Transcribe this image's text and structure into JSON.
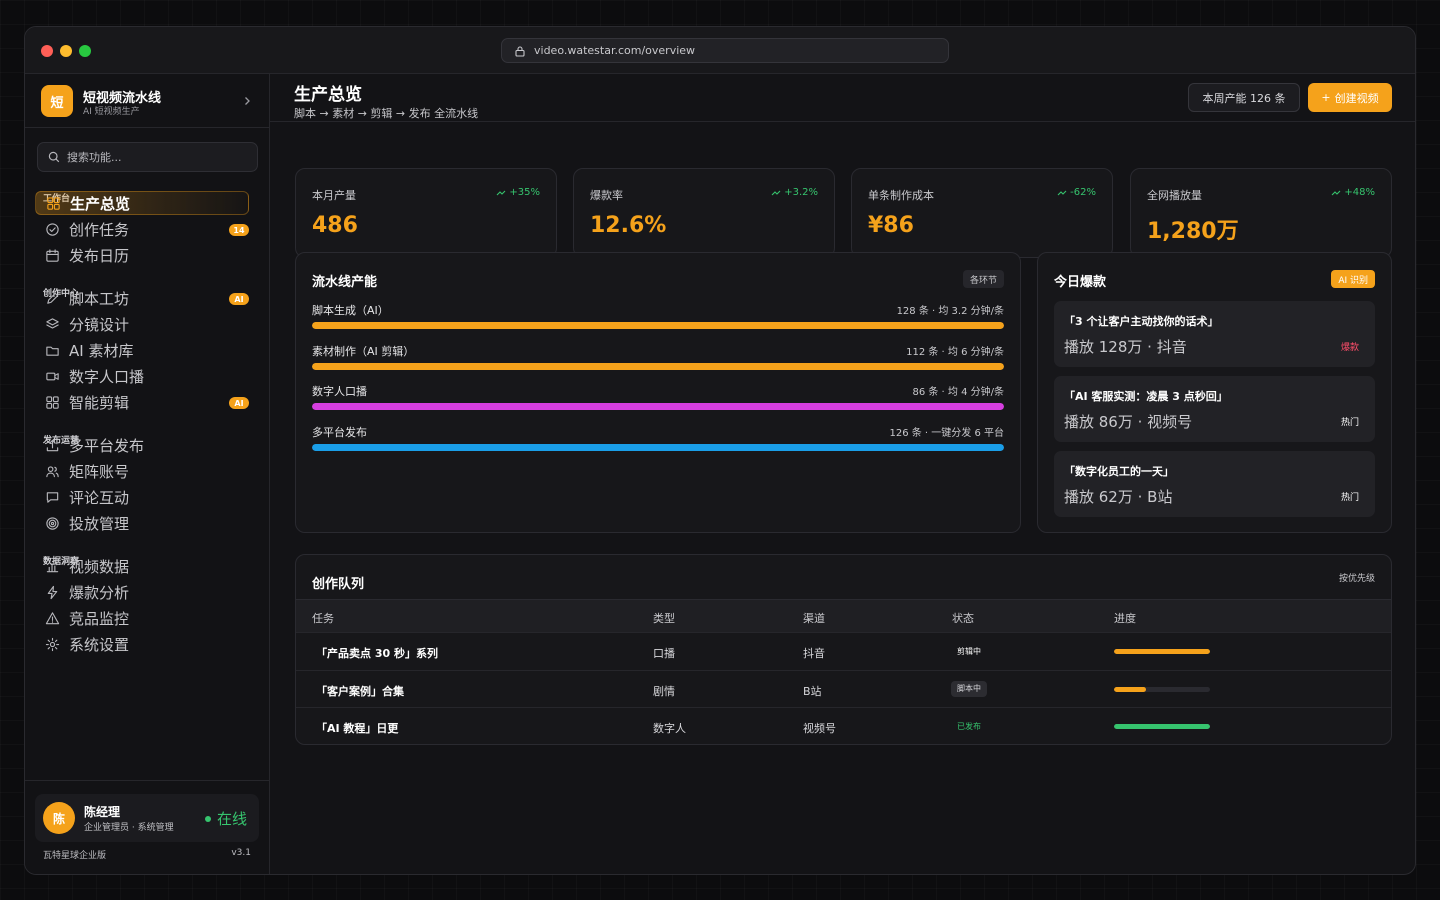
{
  "browser": {
    "url": "video.watestar.com/overview"
  },
  "brand": {
    "logo_char": "短",
    "name": "短视频流水线",
    "subtitle": "AI 短视频生产"
  },
  "search": {
    "placeholder": "搜索功能..."
  },
  "sidebar": {
    "sections": [
      {
        "label": "工作台",
        "items": [
          {
            "label": "生产总览",
            "icon": "grid-icon",
            "active": true
          },
          {
            "label": "创作任务",
            "icon": "check-circle-icon",
            "badge": "14"
          },
          {
            "label": "发布日历",
            "icon": "calendar-icon"
          }
        ]
      },
      {
        "label": "创作中心",
        "items": [
          {
            "label": "脚本工坊",
            "icon": "pencil-icon",
            "badge": "AI"
          },
          {
            "label": "分镜设计",
            "icon": "layers-icon"
          },
          {
            "label": "AI 素材库",
            "icon": "folder-icon"
          },
          {
            "label": "数字人口播",
            "icon": "video-icon"
          },
          {
            "label": "智能剪辑",
            "icon": "grid-icon",
            "badge": "AI"
          }
        ]
      },
      {
        "label": "发布运营",
        "items": [
          {
            "label": "多平台发布",
            "icon": "upload-icon"
          },
          {
            "label": "矩阵账号",
            "icon": "users-icon"
          },
          {
            "label": "评论互动",
            "icon": "message-icon"
          },
          {
            "label": "投放管理",
            "icon": "target-icon"
          }
        ]
      },
      {
        "label": "数据洞察",
        "items": [
          {
            "label": "视频数据",
            "icon": "bar-chart-icon"
          },
          {
            "label": "爆款分析",
            "icon": "lightning-icon"
          },
          {
            "label": "竞品监控",
            "icon": "alert-icon"
          },
          {
            "label": "系统设置",
            "icon": "gear-icon"
          }
        ]
      }
    ]
  },
  "user": {
    "avatar_char": "陈",
    "name": "陈经理",
    "role": "企业管理员 · 系统管理",
    "status": "在线"
  },
  "footer": {
    "org": "瓦特星球企业版",
    "version": "v3.1"
  },
  "header": {
    "title": "生产总览",
    "subtitle": "脚本 → 素材 → 剪辑 → 发布 全流水线",
    "week_output": "本周产能 126 条",
    "create_label": "创建视频"
  },
  "kpis": [
    {
      "label": "本月产量",
      "value": "486",
      "trend": "+35%"
    },
    {
      "label": "爆款率",
      "value": "12.6%",
      "trend": "+3.2%"
    },
    {
      "label": "单条制作成本",
      "value": "¥86",
      "trend": "-62%"
    },
    {
      "label": "全网播放量",
      "value": "1,280万",
      "trend": "+48%"
    }
  ],
  "pipeline": {
    "title": "流水线产能",
    "tag": "各环节",
    "rows": [
      {
        "name": "脚本生成（AI）",
        "meta": "128 条 · 均 3.2 分钟/条",
        "fill": 1.0,
        "color": "#f5a21b"
      },
      {
        "name": "素材制作（AI 剪辑）",
        "meta": "112 条 · 均 6 分钟/条",
        "fill": 1.0,
        "color": "#f5a21b"
      },
      {
        "name": "数字人口播",
        "meta": "86 条 · 均 4 分钟/条",
        "fill": 1.0,
        "color": "#d63ee0"
      },
      {
        "name": "多平台发布",
        "meta": "126 条 · 一键分发 6 平台",
        "fill": 1.0,
        "color": "#1a9ee8"
      }
    ]
  },
  "hits": {
    "title": "今日爆款",
    "tag": "AI 识别",
    "items": [
      {
        "title": "「3 个让客户主动找你的话术」",
        "meta": "播放 128万 · 抖音",
        "badge": "爆款",
        "badge_color": "#ff4d6a"
      },
      {
        "title": "「AI 客服实测：凌晨 3 点秒回」",
        "meta": "播放 86万 · 视频号",
        "badge": "热门",
        "badge_color": "#ffffff"
      },
      {
        "title": "「数字化员工的一天」",
        "meta": "播放 62万 · B站",
        "badge": "热门",
        "badge_color": "#ffffff"
      }
    ]
  },
  "queue": {
    "title": "创作队列",
    "sort_label": "按优先级",
    "columns": [
      "任务",
      "类型",
      "渠道",
      "状态",
      "进度"
    ],
    "rows": [
      {
        "task": "「产品卖点 30 秒」系列",
        "type": "口播",
        "channel": "抖音",
        "status": "剪辑中",
        "status_bg": "transparent",
        "status_color": "#ffffff",
        "progress": 1.0,
        "progress_color": "#f5a21b"
      },
      {
        "task": "「客户案例」合集",
        "type": "剧情",
        "channel": "B站",
        "status": "脚本中",
        "status_bg": "#2c2c31",
        "status_color": "#d8d8dc",
        "progress": 0.33,
        "progress_color": "#f5a21b"
      },
      {
        "task": "「AI 教程」日更",
        "type": "数字人",
        "channel": "视频号",
        "status": "已发布",
        "status_bg": "transparent",
        "status_color": "#36c46e",
        "progress": 1.0,
        "progress_color": "#36c46e"
      }
    ]
  }
}
